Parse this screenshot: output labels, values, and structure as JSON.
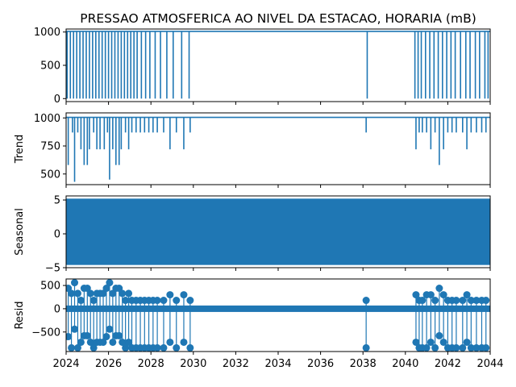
{
  "chart_data": {
    "type": "line",
    "title": "PRESSAO ATMOSFERICA AO NIVEL DA ESTACAO, HORARIA (mB)",
    "xlim": [
      2024,
      2044
    ],
    "x_ticks": [
      "2024",
      "2026",
      "2028",
      "2030",
      "2032",
      "2034",
      "2036",
      "2038",
      "2040",
      "2042",
      "2044"
    ],
    "series_color": "#1f77b4",
    "panels": [
      {
        "name": "observed",
        "ylabel": "",
        "ylim": [
          -45,
          1045
        ],
        "y_ticks": [
          0,
          500,
          1000
        ],
        "baseline": 1010,
        "dip_value": 0,
        "dropouts": [
          2024.05,
          2024.2,
          2024.35,
          2024.5,
          2024.65,
          2024.8,
          2024.95,
          2025.1,
          2025.25,
          2025.4,
          2025.55,
          2025.7,
          2025.85,
          2026.0,
          2026.15,
          2026.3,
          2026.45,
          2026.6,
          2026.75,
          2026.9,
          2027.05,
          2027.2,
          2027.35,
          2027.55,
          2027.75,
          2027.95,
          2028.2,
          2028.45,
          2028.75,
          2029.05,
          2029.45,
          2029.8,
          2038.2,
          2040.45,
          2040.6,
          2040.75,
          2040.95,
          2041.15,
          2041.35,
          2041.55,
          2041.75,
          2041.95,
          2042.15,
          2042.35,
          2042.6,
          2042.85,
          2043.05,
          2043.3,
          2043.5,
          2043.75,
          2043.9
        ]
      },
      {
        "name": "trend",
        "ylabel": "Trend",
        "ylim": [
          405,
          1045
        ],
        "y_ticks": [
          500,
          750,
          1000
        ],
        "baseline": 1005,
        "dips": [
          [
            2024.1,
            580
          ],
          [
            2024.3,
            870
          ],
          [
            2024.4,
            430
          ],
          [
            2024.55,
            870
          ],
          [
            2024.7,
            720
          ],
          [
            2024.85,
            580
          ],
          [
            2025.0,
            580
          ],
          [
            2025.1,
            720
          ],
          [
            2025.3,
            870
          ],
          [
            2025.45,
            720
          ],
          [
            2025.6,
            720
          ],
          [
            2025.8,
            720
          ],
          [
            2025.95,
            870
          ],
          [
            2026.05,
            450
          ],
          [
            2026.2,
            720
          ],
          [
            2026.35,
            580
          ],
          [
            2026.5,
            580
          ],
          [
            2026.6,
            720
          ],
          [
            2026.8,
            870
          ],
          [
            2026.95,
            720
          ],
          [
            2027.1,
            870
          ],
          [
            2027.3,
            870
          ],
          [
            2027.5,
            870
          ],
          [
            2027.7,
            870
          ],
          [
            2027.9,
            870
          ],
          [
            2028.1,
            870
          ],
          [
            2028.3,
            870
          ],
          [
            2028.6,
            870
          ],
          [
            2028.9,
            720
          ],
          [
            2029.2,
            870
          ],
          [
            2029.55,
            720
          ],
          [
            2029.85,
            870
          ],
          [
            2038.15,
            870
          ],
          [
            2040.5,
            720
          ],
          [
            2040.65,
            870
          ],
          [
            2040.8,
            870
          ],
          [
            2041.0,
            870
          ],
          [
            2041.2,
            720
          ],
          [
            2041.4,
            870
          ],
          [
            2041.6,
            580
          ],
          [
            2041.8,
            720
          ],
          [
            2042.0,
            870
          ],
          [
            2042.2,
            870
          ],
          [
            2042.4,
            870
          ],
          [
            2042.7,
            870
          ],
          [
            2042.9,
            720
          ],
          [
            2043.1,
            870
          ],
          [
            2043.35,
            870
          ],
          [
            2043.6,
            870
          ],
          [
            2043.8,
            870
          ]
        ]
      },
      {
        "name": "seasonal",
        "ylabel": "Seasonal",
        "ylim": [
          -5,
          5.6
        ],
        "y_ticks": [
          -5,
          0,
          5
        ],
        "band": [
          -4.6,
          5.2
        ]
      },
      {
        "name": "resid",
        "ylabel": "Resid",
        "ylim": [
          -920,
          640
        ],
        "y_ticks": [
          -500,
          0,
          500
        ],
        "upper_points": [
          [
            2024.1,
            440
          ],
          [
            2024.25,
            330
          ],
          [
            2024.4,
            560
          ],
          [
            2024.55,
            330
          ],
          [
            2024.7,
            180
          ],
          [
            2024.85,
            440
          ],
          [
            2025.0,
            440
          ],
          [
            2025.15,
            330
          ],
          [
            2025.3,
            180
          ],
          [
            2025.45,
            330
          ],
          [
            2025.6,
            330
          ],
          [
            2025.75,
            330
          ],
          [
            2025.9,
            440
          ],
          [
            2026.05,
            560
          ],
          [
            2026.2,
            330
          ],
          [
            2026.35,
            440
          ],
          [
            2026.5,
            440
          ],
          [
            2026.65,
            330
          ],
          [
            2026.8,
            180
          ],
          [
            2026.95,
            330
          ],
          [
            2027.1,
            180
          ],
          [
            2027.3,
            180
          ],
          [
            2027.5,
            180
          ],
          [
            2027.7,
            180
          ],
          [
            2027.9,
            180
          ],
          [
            2028.1,
            180
          ],
          [
            2028.3,
            180
          ],
          [
            2028.6,
            180
          ],
          [
            2028.9,
            300
          ],
          [
            2029.2,
            180
          ],
          [
            2029.55,
            300
          ],
          [
            2029.85,
            180
          ],
          [
            2038.15,
            180
          ],
          [
            2040.5,
            300
          ],
          [
            2040.65,
            180
          ],
          [
            2040.8,
            180
          ],
          [
            2041.0,
            300
          ],
          [
            2041.2,
            300
          ],
          [
            2041.4,
            180
          ],
          [
            2041.6,
            440
          ],
          [
            2041.8,
            300
          ],
          [
            2042.0,
            180
          ],
          [
            2042.2,
            180
          ],
          [
            2042.4,
            180
          ],
          [
            2042.7,
            180
          ],
          [
            2042.9,
            300
          ],
          [
            2043.1,
            180
          ],
          [
            2043.35,
            180
          ],
          [
            2043.6,
            180
          ],
          [
            2043.8,
            180
          ]
        ],
        "lower_points": [
          [
            2024.1,
            -600
          ],
          [
            2024.25,
            -840
          ],
          [
            2024.4,
            -440
          ],
          [
            2024.55,
            -840
          ],
          [
            2024.7,
            -720
          ],
          [
            2024.85,
            -580
          ],
          [
            2025.0,
            -580
          ],
          [
            2025.15,
            -720
          ],
          [
            2025.3,
            -840
          ],
          [
            2025.45,
            -720
          ],
          [
            2025.6,
            -720
          ],
          [
            2025.75,
            -720
          ],
          [
            2025.9,
            -600
          ],
          [
            2026.05,
            -440
          ],
          [
            2026.2,
            -720
          ],
          [
            2026.35,
            -580
          ],
          [
            2026.5,
            -580
          ],
          [
            2026.65,
            -720
          ],
          [
            2026.8,
            -840
          ],
          [
            2026.95,
            -720
          ],
          [
            2027.1,
            -840
          ],
          [
            2027.3,
            -840
          ],
          [
            2027.5,
            -840
          ],
          [
            2027.7,
            -840
          ],
          [
            2027.9,
            -840
          ],
          [
            2028.1,
            -840
          ],
          [
            2028.3,
            -840
          ],
          [
            2028.6,
            -840
          ],
          [
            2028.9,
            -720
          ],
          [
            2029.2,
            -840
          ],
          [
            2029.55,
            -720
          ],
          [
            2029.85,
            -840
          ],
          [
            2038.15,
            -840
          ],
          [
            2040.5,
            -720
          ],
          [
            2040.65,
            -840
          ],
          [
            2040.8,
            -840
          ],
          [
            2041.0,
            -840
          ],
          [
            2041.2,
            -720
          ],
          [
            2041.4,
            -840
          ],
          [
            2041.6,
            -580
          ],
          [
            2041.8,
            -720
          ],
          [
            2042.0,
            -840
          ],
          [
            2042.2,
            -840
          ],
          [
            2042.4,
            -840
          ],
          [
            2042.7,
            -840
          ],
          [
            2042.9,
            -720
          ],
          [
            2043.1,
            -840
          ],
          [
            2043.35,
            -840
          ],
          [
            2043.6,
            -840
          ],
          [
            2043.8,
            -840
          ]
        ],
        "zero_band": [
          2024,
          2044
        ]
      }
    ]
  }
}
